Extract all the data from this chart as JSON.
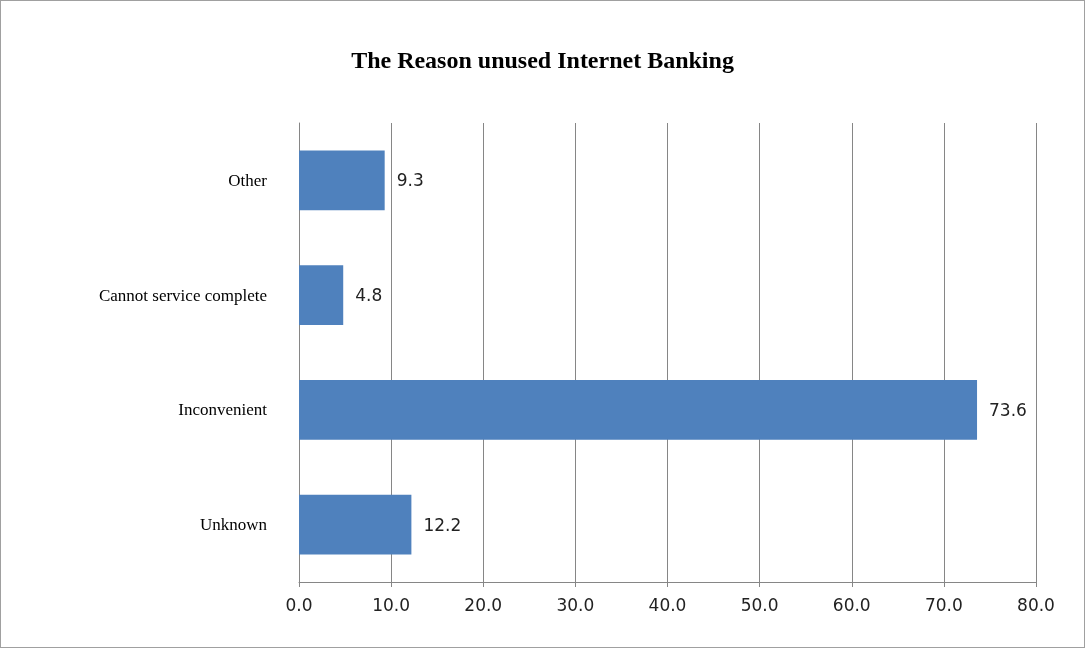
{
  "chart_data": {
    "type": "bar",
    "orientation": "horizontal",
    "title": "The Reason unused Internet Banking",
    "categories": [
      "Other",
      "Cannot service complete",
      "Inconvenient",
      "Unknown"
    ],
    "values": [
      9.3,
      4.8,
      73.6,
      12.2
    ],
    "color": "#4f81bd",
    "xlim": [
      0,
      80
    ],
    "xticks": [
      {
        "value": 0,
        "label": "0.0"
      },
      {
        "value": 10,
        "label": "10.0"
      },
      {
        "value": 20,
        "label": "20.0"
      },
      {
        "value": 30,
        "label": "30.0"
      },
      {
        "value": 40,
        "label": "40.0"
      },
      {
        "value": 50,
        "label": "50.0"
      },
      {
        "value": 60,
        "label": "60.0"
      },
      {
        "value": 70,
        "label": "70.0"
      },
      {
        "value": 80,
        "label": "80.0"
      }
    ],
    "grid": "x",
    "data_labels": true
  }
}
